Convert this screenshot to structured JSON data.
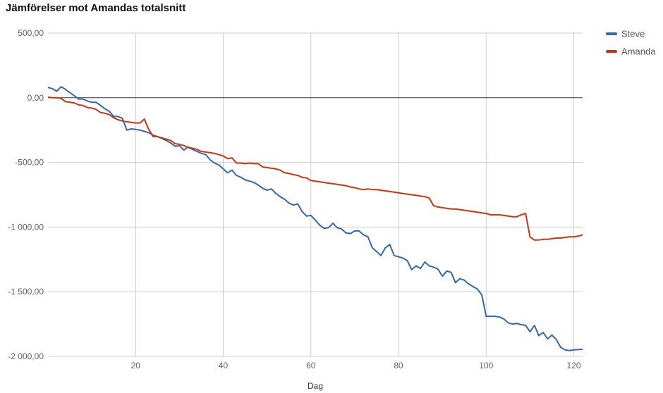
{
  "chart_data": {
    "type": "line",
    "title": "Jämförelser mot Amandas totalsnitt",
    "xlabel": "Dag",
    "ylabel": "",
    "xlim": [
      0,
      122
    ],
    "ylim": [
      -2000,
      500
    ],
    "x_ticks": [
      20,
      40,
      60,
      80,
      100,
      120
    ],
    "y_ticks": [
      500,
      0,
      -500,
      -1000,
      -1500,
      -2000
    ],
    "x_tick_labels": [
      "20",
      "40",
      "60",
      "80",
      "100",
      "120"
    ],
    "y_tick_labels": [
      "500,00",
      "0,00",
      "-500,00",
      "-1 000,00",
      "-1 500,00",
      "-2 000,00"
    ],
    "grid": true,
    "legend": "right",
    "series": [
      {
        "name": "Steve",
        "color": "#3466b0",
        "points": [
          [
            0,
            80
          ],
          [
            1,
            70
          ],
          [
            2,
            50
          ],
          [
            3,
            85
          ],
          [
            4,
            65
          ],
          [
            5,
            40
          ],
          [
            6,
            15
          ],
          [
            7,
            -10
          ],
          [
            8,
            -10
          ],
          [
            9,
            -25
          ],
          [
            10,
            -35
          ],
          [
            11,
            -35
          ],
          [
            12,
            -60
          ],
          [
            13,
            -85
          ],
          [
            14,
            -105
          ],
          [
            15,
            -145
          ],
          [
            16,
            -145
          ],
          [
            17,
            -160
          ],
          [
            18,
            -250
          ],
          [
            19,
            -240
          ],
          [
            20,
            -245
          ],
          [
            21,
            -250
          ],
          [
            22,
            -260
          ],
          [
            23,
            -270
          ],
          [
            24,
            -290
          ],
          [
            25,
            -300
          ],
          [
            26,
            -315
          ],
          [
            27,
            -330
          ],
          [
            28,
            -350
          ],
          [
            29,
            -375
          ],
          [
            30,
            -370
          ],
          [
            31,
            -405
          ],
          [
            32,
            -380
          ],
          [
            33,
            -400
          ],
          [
            34,
            -415
          ],
          [
            35,
            -430
          ],
          [
            36,
            -440
          ],
          [
            37,
            -480
          ],
          [
            38,
            -505
          ],
          [
            39,
            -520
          ],
          [
            40,
            -550
          ],
          [
            41,
            -580
          ],
          [
            42,
            -560
          ],
          [
            43,
            -600
          ],
          [
            44,
            -615
          ],
          [
            45,
            -635
          ],
          [
            46,
            -645
          ],
          [
            47,
            -655
          ],
          [
            48,
            -675
          ],
          [
            49,
            -700
          ],
          [
            50,
            -715
          ],
          [
            51,
            -705
          ],
          [
            52,
            -740
          ],
          [
            53,
            -765
          ],
          [
            54,
            -785
          ],
          [
            55,
            -815
          ],
          [
            56,
            -830
          ],
          [
            57,
            -820
          ],
          [
            58,
            -880
          ],
          [
            59,
            -915
          ],
          [
            60,
            -910
          ],
          [
            61,
            -945
          ],
          [
            62,
            -985
          ],
          [
            63,
            -1010
          ],
          [
            64,
            -1005
          ],
          [
            65,
            -970
          ],
          [
            66,
            -1005
          ],
          [
            67,
            -1015
          ],
          [
            68,
            -1045
          ],
          [
            69,
            -1050
          ],
          [
            70,
            -1030
          ],
          [
            71,
            -1030
          ],
          [
            72,
            -1060
          ],
          [
            73,
            -1075
          ],
          [
            74,
            -1160
          ],
          [
            75,
            -1190
          ],
          [
            76,
            -1220
          ],
          [
            77,
            -1160
          ],
          [
            78,
            -1135
          ],
          [
            79,
            -1220
          ],
          [
            80,
            -1230
          ],
          [
            81,
            -1240
          ],
          [
            82,
            -1260
          ],
          [
            83,
            -1330
          ],
          [
            84,
            -1300
          ],
          [
            85,
            -1320
          ],
          [
            86,
            -1270
          ],
          [
            87,
            -1300
          ],
          [
            88,
            -1310
          ],
          [
            89,
            -1325
          ],
          [
            90,
            -1380
          ],
          [
            91,
            -1340
          ],
          [
            92,
            -1350
          ],
          [
            93,
            -1430
          ],
          [
            94,
            -1400
          ],
          [
            95,
            -1410
          ],
          [
            96,
            -1440
          ],
          [
            97,
            -1460
          ],
          [
            98,
            -1480
          ],
          [
            99,
            -1525
          ],
          [
            100,
            -1690
          ],
          [
            101,
            -1690
          ],
          [
            102,
            -1690
          ],
          [
            103,
            -1695
          ],
          [
            104,
            -1710
          ],
          [
            105,
            -1740
          ],
          [
            106,
            -1750
          ],
          [
            107,
            -1745
          ],
          [
            108,
            -1755
          ],
          [
            109,
            -1760
          ],
          [
            110,
            -1810
          ],
          [
            111,
            -1760
          ],
          [
            112,
            -1840
          ],
          [
            113,
            -1815
          ],
          [
            114,
            -1865
          ],
          [
            115,
            -1835
          ],
          [
            116,
            -1870
          ],
          [
            117,
            -1930
          ],
          [
            118,
            -1950
          ],
          [
            119,
            -1955
          ],
          [
            120,
            -1950
          ],
          [
            122,
            -1945
          ]
        ]
      },
      {
        "name": "Amanda",
        "color": "#cc3311",
        "points": [
          [
            0,
            5
          ],
          [
            1,
            0
          ],
          [
            2,
            0
          ],
          [
            3,
            -5
          ],
          [
            4,
            -30
          ],
          [
            5,
            -35
          ],
          [
            6,
            -40
          ],
          [
            7,
            -55
          ],
          [
            8,
            -60
          ],
          [
            9,
            -75
          ],
          [
            10,
            -80
          ],
          [
            11,
            -90
          ],
          [
            12,
            -115
          ],
          [
            13,
            -120
          ],
          [
            14,
            -130
          ],
          [
            15,
            -155
          ],
          [
            16,
            -170
          ],
          [
            17,
            -180
          ],
          [
            18,
            -185
          ],
          [
            19,
            -190
          ],
          [
            20,
            -195
          ],
          [
            21,
            -195
          ],
          [
            22,
            -165
          ],
          [
            23,
            -245
          ],
          [
            24,
            -300
          ],
          [
            25,
            -300
          ],
          [
            26,
            -310
          ],
          [
            27,
            -320
          ],
          [
            28,
            -330
          ],
          [
            29,
            -355
          ],
          [
            30,
            -360
          ],
          [
            31,
            -370
          ],
          [
            32,
            -385
          ],
          [
            33,
            -390
          ],
          [
            34,
            -400
          ],
          [
            35,
            -415
          ],
          [
            36,
            -420
          ],
          [
            37,
            -425
          ],
          [
            38,
            -430
          ],
          [
            39,
            -440
          ],
          [
            40,
            -450
          ],
          [
            41,
            -470
          ],
          [
            42,
            -465
          ],
          [
            43,
            -505
          ],
          [
            44,
            -505
          ],
          [
            45,
            -510
          ],
          [
            46,
            -505
          ],
          [
            47,
            -510
          ],
          [
            48,
            -510
          ],
          [
            49,
            -535
          ],
          [
            50,
            -540
          ],
          [
            51,
            -545
          ],
          [
            52,
            -550
          ],
          [
            53,
            -560
          ],
          [
            54,
            -580
          ],
          [
            55,
            -585
          ],
          [
            56,
            -595
          ],
          [
            57,
            -600
          ],
          [
            58,
            -615
          ],
          [
            59,
            -620
          ],
          [
            60,
            -640
          ],
          [
            61,
            -645
          ],
          [
            62,
            -650
          ],
          [
            63,
            -655
          ],
          [
            64,
            -660
          ],
          [
            65,
            -665
          ],
          [
            66,
            -670
          ],
          [
            67,
            -675
          ],
          [
            68,
            -680
          ],
          [
            69,
            -690
          ],
          [
            70,
            -695
          ],
          [
            71,
            -705
          ],
          [
            72,
            -710
          ],
          [
            73,
            -705
          ],
          [
            74,
            -710
          ],
          [
            75,
            -710
          ],
          [
            76,
            -715
          ],
          [
            77,
            -720
          ],
          [
            78,
            -725
          ],
          [
            79,
            -730
          ],
          [
            80,
            -735
          ],
          [
            81,
            -740
          ],
          [
            82,
            -745
          ],
          [
            83,
            -750
          ],
          [
            84,
            -755
          ],
          [
            85,
            -760
          ],
          [
            86,
            -765
          ],
          [
            87,
            -775
          ],
          [
            88,
            -835
          ],
          [
            89,
            -845
          ],
          [
            90,
            -850
          ],
          [
            91,
            -855
          ],
          [
            92,
            -860
          ],
          [
            93,
            -860
          ],
          [
            94,
            -865
          ],
          [
            95,
            -870
          ],
          [
            96,
            -875
          ],
          [
            97,
            -880
          ],
          [
            98,
            -885
          ],
          [
            99,
            -890
          ],
          [
            100,
            -895
          ],
          [
            101,
            -905
          ],
          [
            102,
            -905
          ],
          [
            103,
            -905
          ],
          [
            104,
            -910
          ],
          [
            105,
            -915
          ],
          [
            106,
            -920
          ],
          [
            107,
            -920
          ],
          [
            108,
            -905
          ],
          [
            109,
            -895
          ],
          [
            110,
            -1075
          ],
          [
            111,
            -1100
          ],
          [
            112,
            -1100
          ],
          [
            113,
            -1095
          ],
          [
            114,
            -1095
          ],
          [
            115,
            -1090
          ],
          [
            116,
            -1085
          ],
          [
            117,
            -1085
          ],
          [
            118,
            -1080
          ],
          [
            119,
            -1075
          ],
          [
            120,
            -1075
          ],
          [
            121,
            -1070
          ],
          [
            122,
            -1060
          ]
        ]
      }
    ]
  }
}
